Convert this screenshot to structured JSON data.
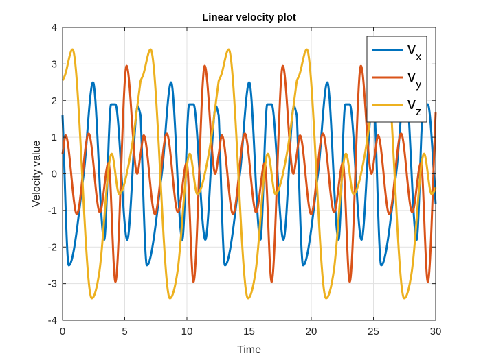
{
  "chart_data": {
    "type": "line",
    "title": "Linear velocity plot",
    "xlabel": "Time",
    "ylabel": "Velocity value",
    "xlim": [
      0,
      30
    ],
    "ylim": [
      -4,
      4
    ],
    "xticks": [
      0,
      5,
      10,
      15,
      20,
      25,
      30
    ],
    "yticks": [
      -4,
      -3,
      -2,
      -1,
      0,
      1,
      2,
      3,
      4
    ],
    "xtick_labels": [
      "0",
      "5",
      "10",
      "15",
      "20",
      "25",
      "30"
    ],
    "ytick_labels": [
      "-4",
      "-3",
      "-2",
      "-1",
      "0",
      "1",
      "2",
      "3",
      "4"
    ],
    "grid": true,
    "legend_position": "top-right",
    "period": 6.28,
    "series": [
      {
        "name_base": "v",
        "name_sub": "x",
        "color": "#0072BD",
        "x": [
          0,
          0.5,
          1.7,
          2.45,
          3.35,
          3.9,
          4.25,
          5.2,
          6.05,
          6.28
        ],
        "y": [
          1.6,
          -2.5,
          0.0,
          2.5,
          -1.8,
          1.9,
          1.9,
          -1.8,
          1.85,
          1.6
        ]
      },
      {
        "name_base": "v",
        "name_sub": "y",
        "color": "#D95319",
        "x": [
          0,
          0.25,
          1.15,
          2.1,
          3.0,
          3.7,
          4.25,
          5.15,
          6.0,
          6.28
        ],
        "y": [
          0.55,
          1.05,
          -1.1,
          1.1,
          -1.05,
          0.3,
          -2.95,
          2.95,
          0.0,
          0.55
        ]
      },
      {
        "name_base": "v",
        "name_sub": "z",
        "color": "#EDB120",
        "x": [
          0,
          0.2,
          0.8,
          2.35,
          2.95,
          3.95,
          4.55,
          5.45,
          6.28
        ],
        "y": [
          2.55,
          2.7,
          3.4,
          -3.4,
          -2.7,
          0.55,
          -0.55,
          0.5,
          2.55
        ]
      }
    ]
  }
}
